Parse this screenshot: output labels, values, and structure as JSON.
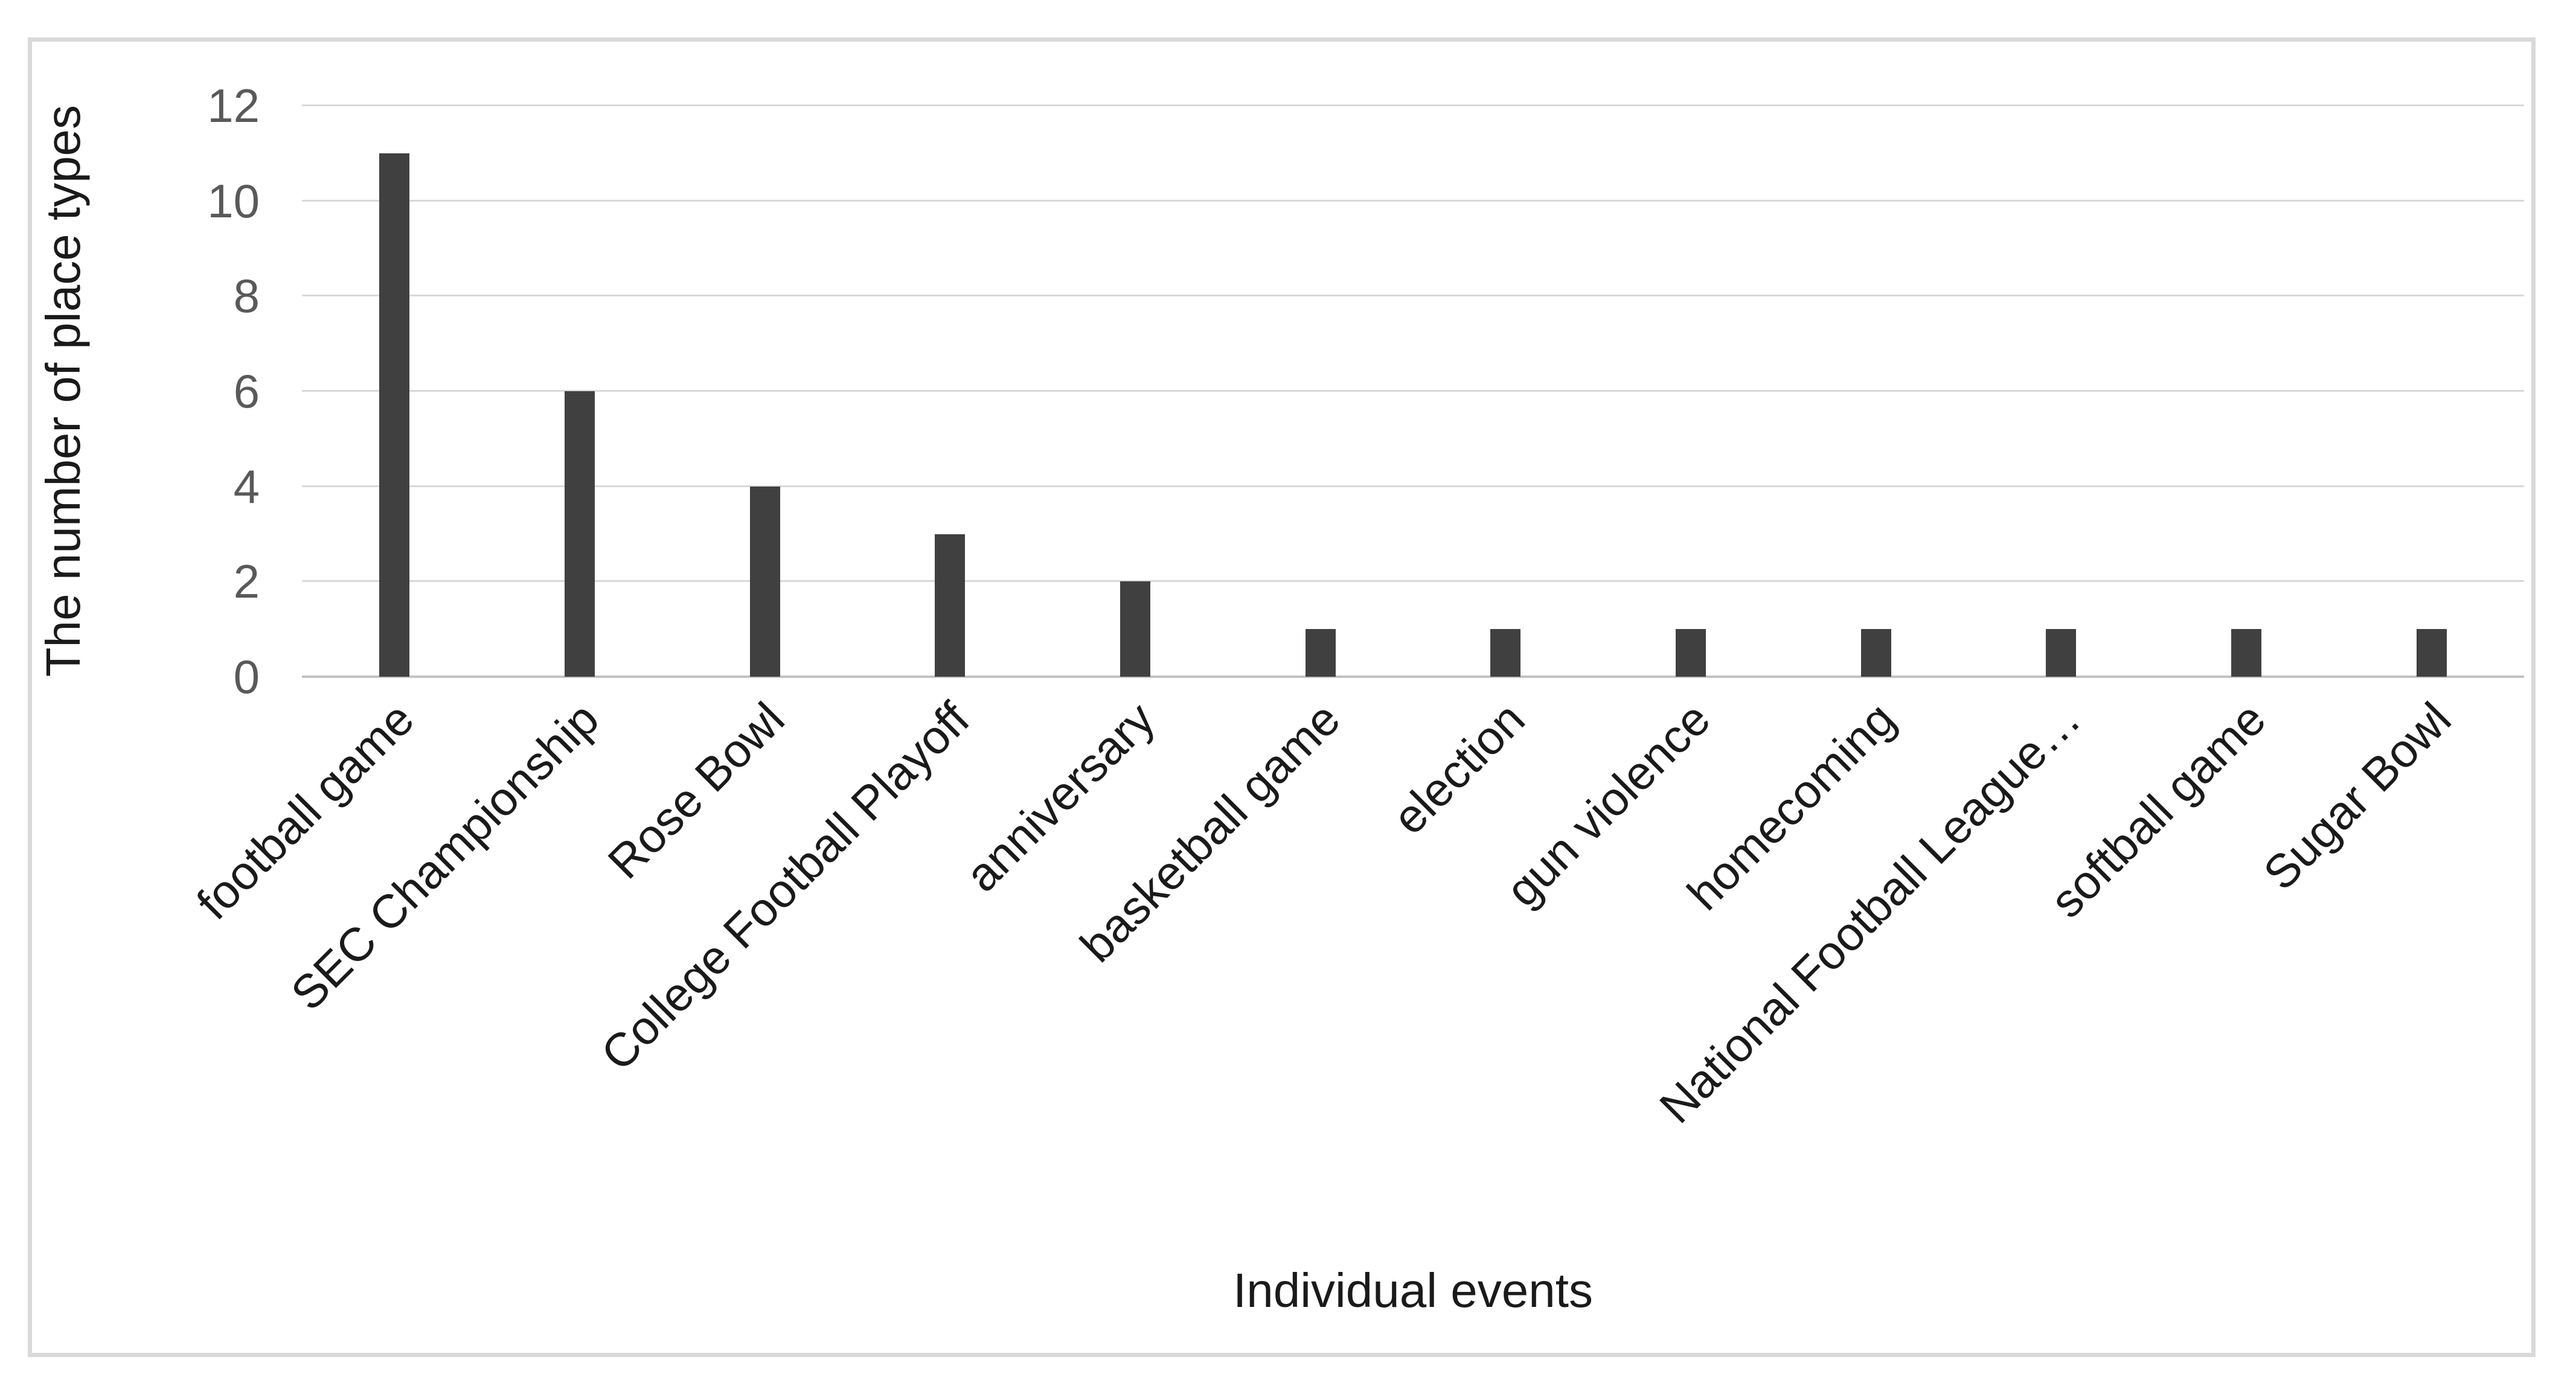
{
  "chart_data": {
    "type": "bar",
    "title": "",
    "xlabel": "Individual events",
    "ylabel": "The number of place types",
    "categories": [
      "football game",
      "SEC Championship",
      "Rose Bowl",
      "College Football Playoff",
      "anniversary",
      "basketball game",
      "election",
      "gun violence",
      "homecoming",
      "National Football League…",
      "softball game",
      "Sugar Bowl"
    ],
    "values": [
      11,
      6,
      4,
      3,
      2,
      1,
      1,
      1,
      1,
      1,
      1,
      1
    ],
    "ylim": [
      0,
      12
    ],
    "yticks": [
      0,
      2,
      4,
      6,
      8,
      10,
      12
    ],
    "grid": true,
    "legend": false,
    "colors": {
      "bar": "#404040",
      "gridline": "#d9d9d9",
      "axis_line": "#c2c2c2",
      "frame_border": "#d9d9d9",
      "ytick_label": "#595959",
      "category_label": "#1a1a1a",
      "axis_title": "#1a1a1a",
      "background": "#ffffff"
    }
  }
}
